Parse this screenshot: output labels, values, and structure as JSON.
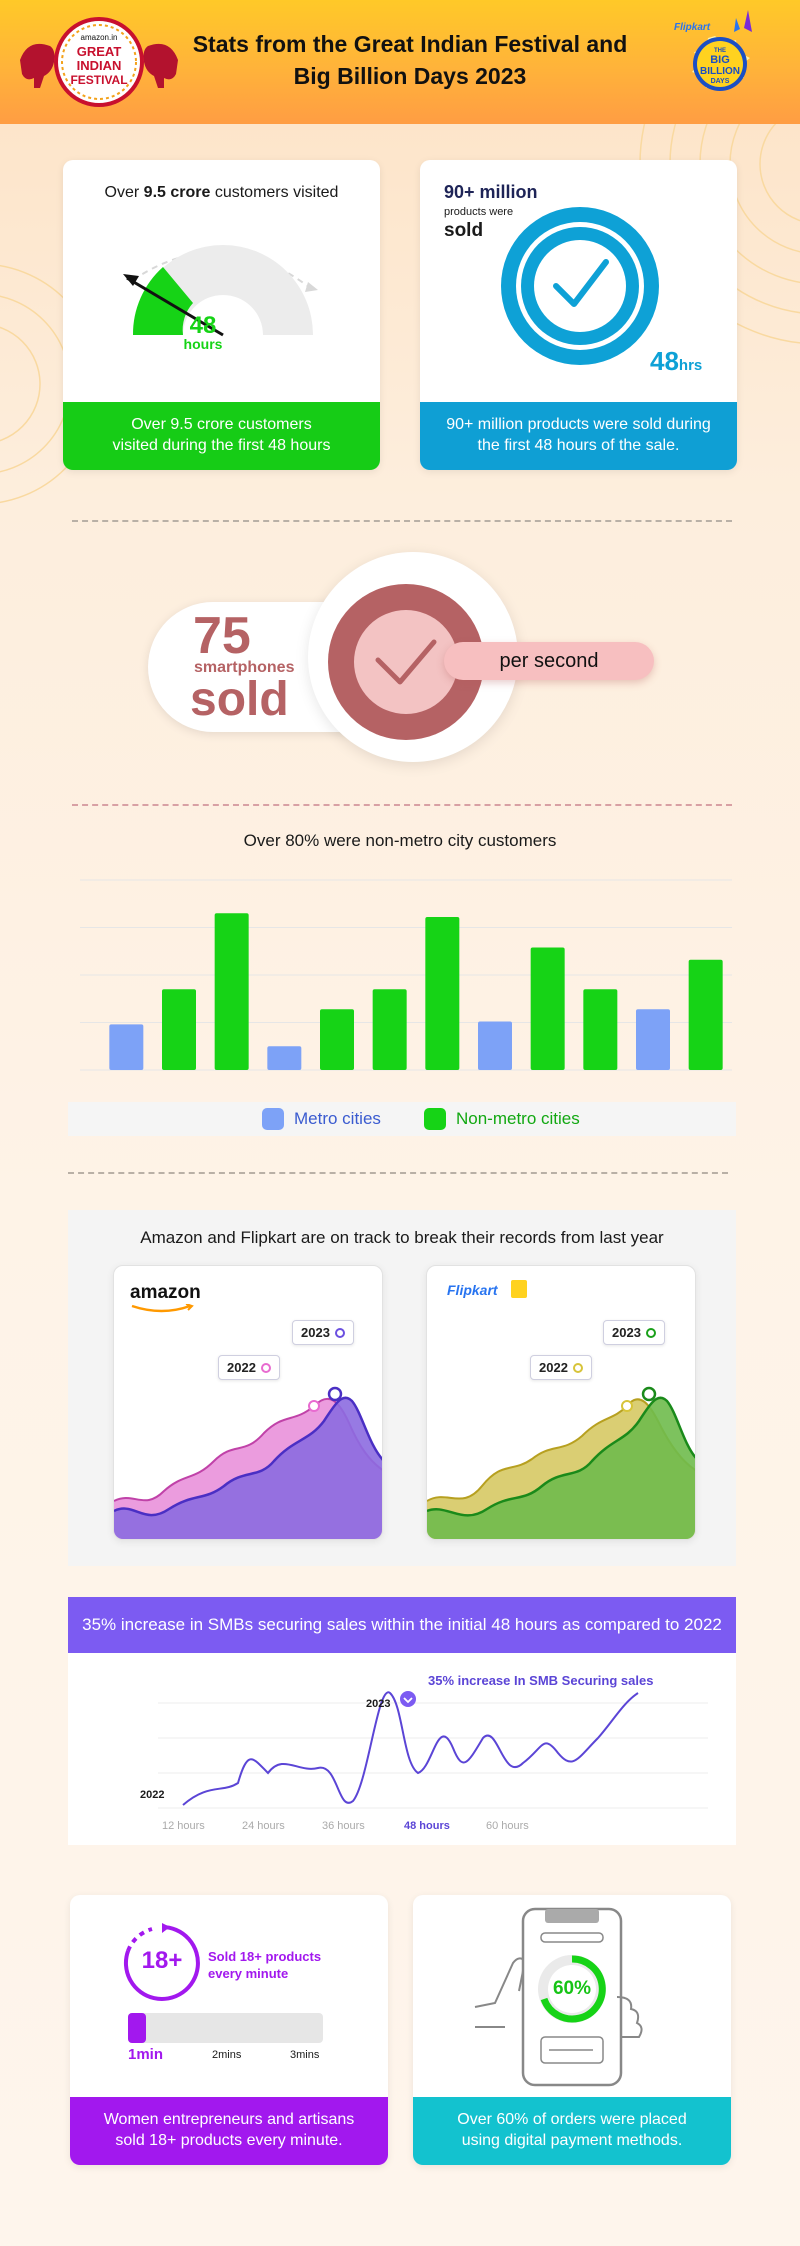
{
  "header": {
    "title": "Stats from the Great Indian Festival and\nBig Billion Days 2023",
    "left_logo": {
      "brand": "amazon.in",
      "line1": "GREAT",
      "line2": "INDIAN",
      "line3": "FESTIVAL"
    },
    "right_logo": {
      "brand": "Flipkart",
      "line1": "THE",
      "line2": "BIG",
      "line3": "BILLION",
      "line4": "DAYS"
    }
  },
  "card_visitors": {
    "heading_prefix": "Over ",
    "heading_bold": "9.5 crore",
    "heading_suffix": " customers visited",
    "gauge_value": "48",
    "gauge_unit": "hours",
    "caption": "Over 9.5 crore customers\nvisited during the first 48 hours",
    "caption_color": "#16cc16"
  },
  "card_products": {
    "big": "90+ million",
    "small": "products were",
    "sold": "sold",
    "hours_value": "48",
    "hours_unit": "hrs",
    "caption": "90+ million products were sold during\nthe first 48 hours of the sale.",
    "caption_color": "#0f9fd4"
  },
  "smartphones": {
    "number": "75",
    "label": "smartphones",
    "sold": "sold",
    "rate": "per second"
  },
  "bar_chart_section": {
    "title": "Over 80% were non-metro city customers"
  },
  "chart_data": {
    "type": "bar",
    "title": "Over 80% were non-metro city customers",
    "series_colors": {
      "Metro cities": "#7da2f7",
      "Non-metro cities": "#16d316"
    },
    "bars": [
      {
        "series": "Metro cities",
        "value": 48
      },
      {
        "series": "Non-metro cities",
        "value": 85
      },
      {
        "series": "Non-metro cities",
        "value": 165
      },
      {
        "series": "Metro cities",
        "value": 25
      },
      {
        "series": "Non-metro cities",
        "value": 64
      },
      {
        "series": "Non-metro cities",
        "value": 85
      },
      {
        "series": "Non-metro cities",
        "value": 161
      },
      {
        "series": "Metro cities",
        "value": 51
      },
      {
        "series": "Non-metro cities",
        "value": 129
      },
      {
        "series": "Non-metro cities",
        "value": 85
      },
      {
        "series": "Metro cities",
        "value": 64
      },
      {
        "series": "Non-metro cities",
        "value": 116
      }
    ],
    "ylim": [
      0,
      200
    ],
    "grid": true,
    "legend": [
      "Metro cities",
      "Non-metro cities"
    ],
    "legend_position": "bottom"
  },
  "records_section": {
    "title": "Amazon and Flipkart are on track to break their records from last year",
    "amazon": {
      "logo": "amazon",
      "tag_2022": "2022",
      "tag_2023": "2023",
      "color_2022": "#e86bd0",
      "color_2023": "#6b4fe0"
    },
    "flipkart": {
      "logo": "Flipkart",
      "tag_2022": "2022",
      "tag_2023": "2023",
      "color_2022": "#d7c43a",
      "color_2023": "#1aa01a"
    }
  },
  "smb": {
    "banner": "35% increase in SMBs securing sales within the initial 48 hours as compared to 2022",
    "banner_color": "#7c5bf2",
    "annotation": "35% increase In SMB Securing sales",
    "label_2023": "2023",
    "label_2022": "2022",
    "x_ticks": [
      "12 hours",
      "24 hours",
      "36 hours",
      "48 hours",
      "60 hours"
    ]
  },
  "card_women": {
    "badge": "18+",
    "headline": "Sold 18+ products\nevery minute",
    "scale": [
      "1min",
      "2mins",
      "3mins"
    ],
    "caption": "Women entrepreneurs and artisans\nsold 18+ products every minute.",
    "caption_color": "#a218ee"
  },
  "card_digital": {
    "percent": "60%",
    "caption": "Over 60% of orders were placed\nusing digital payment methods.",
    "caption_color": "#13c2cf"
  }
}
